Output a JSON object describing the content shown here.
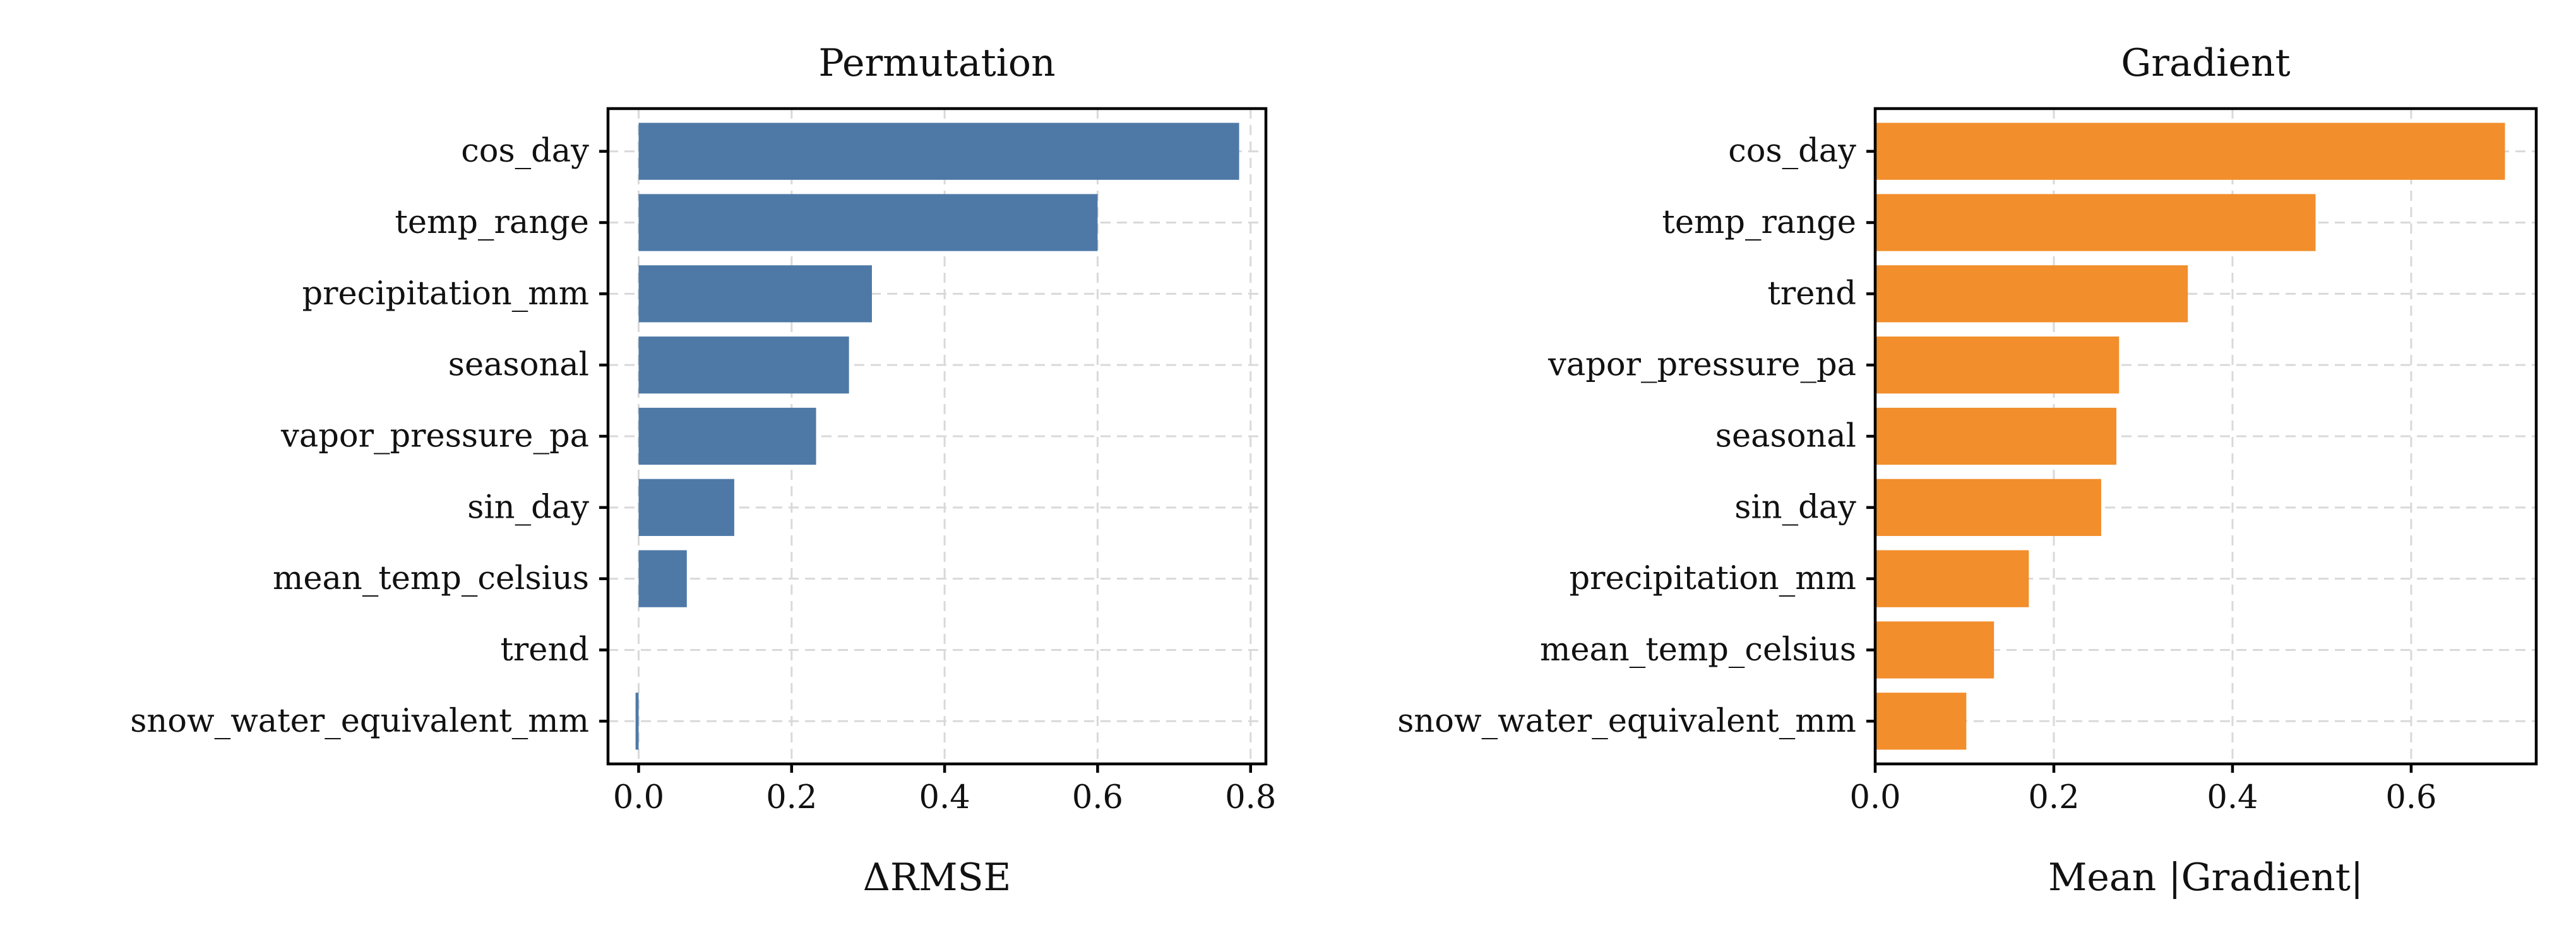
{
  "chart_data": [
    {
      "type": "bar",
      "orientation": "horizontal",
      "title": "Permutation",
      "xlabel": "ΔRMSE",
      "ylabel": "",
      "categories": [
        "cos_day",
        "temp_range",
        "precipitation_mm",
        "seasonal",
        "vapor_pressure_pa",
        "sin_day",
        "mean_temp_celsius",
        "trend",
        "snow_water_equivalent_mm"
      ],
      "values": [
        0.785,
        0.6,
        0.305,
        0.275,
        0.232,
        0.125,
        0.063,
        0.0,
        -0.004
      ],
      "xlim": [
        -0.04,
        0.82
      ],
      "xticks": [
        0.0,
        0.2,
        0.4,
        0.6,
        0.8
      ],
      "xtick_labels": [
        "0.0",
        "0.2",
        "0.4",
        "0.6",
        "0.8"
      ],
      "grid": true,
      "color": "#4e79a7"
    },
    {
      "type": "bar",
      "orientation": "horizontal",
      "title": "Gradient",
      "xlabel": "Mean |Gradient|",
      "ylabel": "",
      "categories": [
        "cos_day",
        "temp_range",
        "trend",
        "vapor_pressure_pa",
        "seasonal",
        "sin_day",
        "precipitation_mm",
        "mean_temp_celsius",
        "snow_water_equivalent_mm"
      ],
      "values": [
        0.705,
        0.493,
        0.35,
        0.273,
        0.27,
        0.253,
        0.172,
        0.133,
        0.102
      ],
      "xlim": [
        0.0,
        0.74
      ],
      "xticks": [
        0.0,
        0.2,
        0.4,
        0.6
      ],
      "xtick_labels": [
        "0.0",
        "0.2",
        "0.4",
        "0.6"
      ],
      "grid": true,
      "color": "#f28e2b"
    }
  ]
}
